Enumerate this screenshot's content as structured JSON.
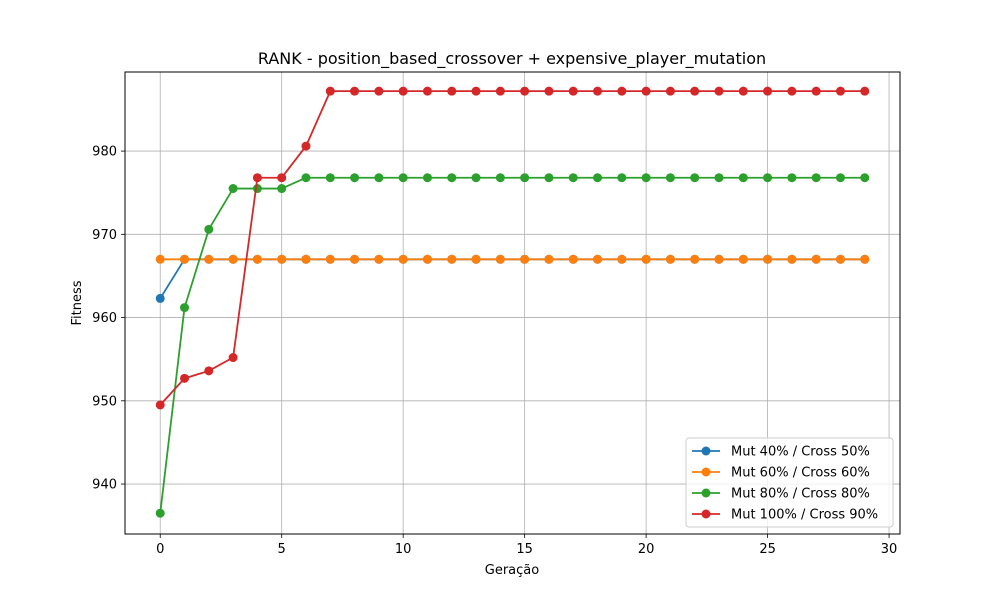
{
  "chart_data": {
    "type": "line",
    "title": "RANK - position_based_crossover + expensive_player_mutation",
    "xlabel": "Geração",
    "ylabel": "Fitness",
    "xlim": [
      -1.45,
      30.45
    ],
    "ylim": [
      934.0,
      989.5
    ],
    "xticks": [
      0,
      5,
      10,
      15,
      20,
      25,
      30
    ],
    "yticks": [
      940,
      950,
      960,
      970,
      980
    ],
    "grid": true,
    "legend_position": "lower-right",
    "x": [
      0,
      1,
      2,
      3,
      4,
      5,
      6,
      7,
      8,
      9,
      10,
      11,
      12,
      13,
      14,
      15,
      16,
      17,
      18,
      19,
      20,
      21,
      22,
      23,
      24,
      25,
      26,
      27,
      28,
      29
    ],
    "series": [
      {
        "name": "Mut 40% / Cross 50%",
        "color": "#1f77b4",
        "values": [
          962.3,
          967.0,
          967.0,
          967.0,
          967.0,
          967.0,
          967.0,
          967.0,
          967.0,
          967.0,
          967.0,
          967.0,
          967.0,
          967.0,
          967.0,
          967.0,
          967.0,
          967.0,
          967.0,
          967.0,
          967.0,
          967.0,
          967.0,
          967.0,
          967.0,
          967.0,
          967.0,
          967.0,
          967.0,
          967.0
        ]
      },
      {
        "name": "Mut 60% / Cross 60%",
        "color": "#ff7f0e",
        "values": [
          967.0,
          967.0,
          967.0,
          967.0,
          967.0,
          967.0,
          967.0,
          967.0,
          967.0,
          967.0,
          967.0,
          967.0,
          967.0,
          967.0,
          967.0,
          967.0,
          967.0,
          967.0,
          967.0,
          967.0,
          967.0,
          967.0,
          967.0,
          967.0,
          967.0,
          967.0,
          967.0,
          967.0,
          967.0,
          967.0
        ]
      },
      {
        "name": "Mut 80% / Cross 80%",
        "color": "#2ca02c",
        "values": [
          936.5,
          961.2,
          970.6,
          975.5,
          975.5,
          975.5,
          976.8,
          976.8,
          976.8,
          976.8,
          976.8,
          976.8,
          976.8,
          976.8,
          976.8,
          976.8,
          976.8,
          976.8,
          976.8,
          976.8,
          976.8,
          976.8,
          976.8,
          976.8,
          976.8,
          976.8,
          976.8,
          976.8,
          976.8,
          976.8
        ]
      },
      {
        "name": "Mut 100% / Cross 90%",
        "color": "#d62728",
        "values": [
          949.5,
          952.7,
          953.6,
          955.2,
          976.8,
          976.8,
          980.6,
          987.2,
          987.2,
          987.2,
          987.2,
          987.2,
          987.2,
          987.2,
          987.2,
          987.2,
          987.2,
          987.2,
          987.2,
          987.2,
          987.2,
          987.2,
          987.2,
          987.2,
          987.2,
          987.2,
          987.2,
          987.2,
          987.2,
          987.2
        ]
      }
    ]
  }
}
